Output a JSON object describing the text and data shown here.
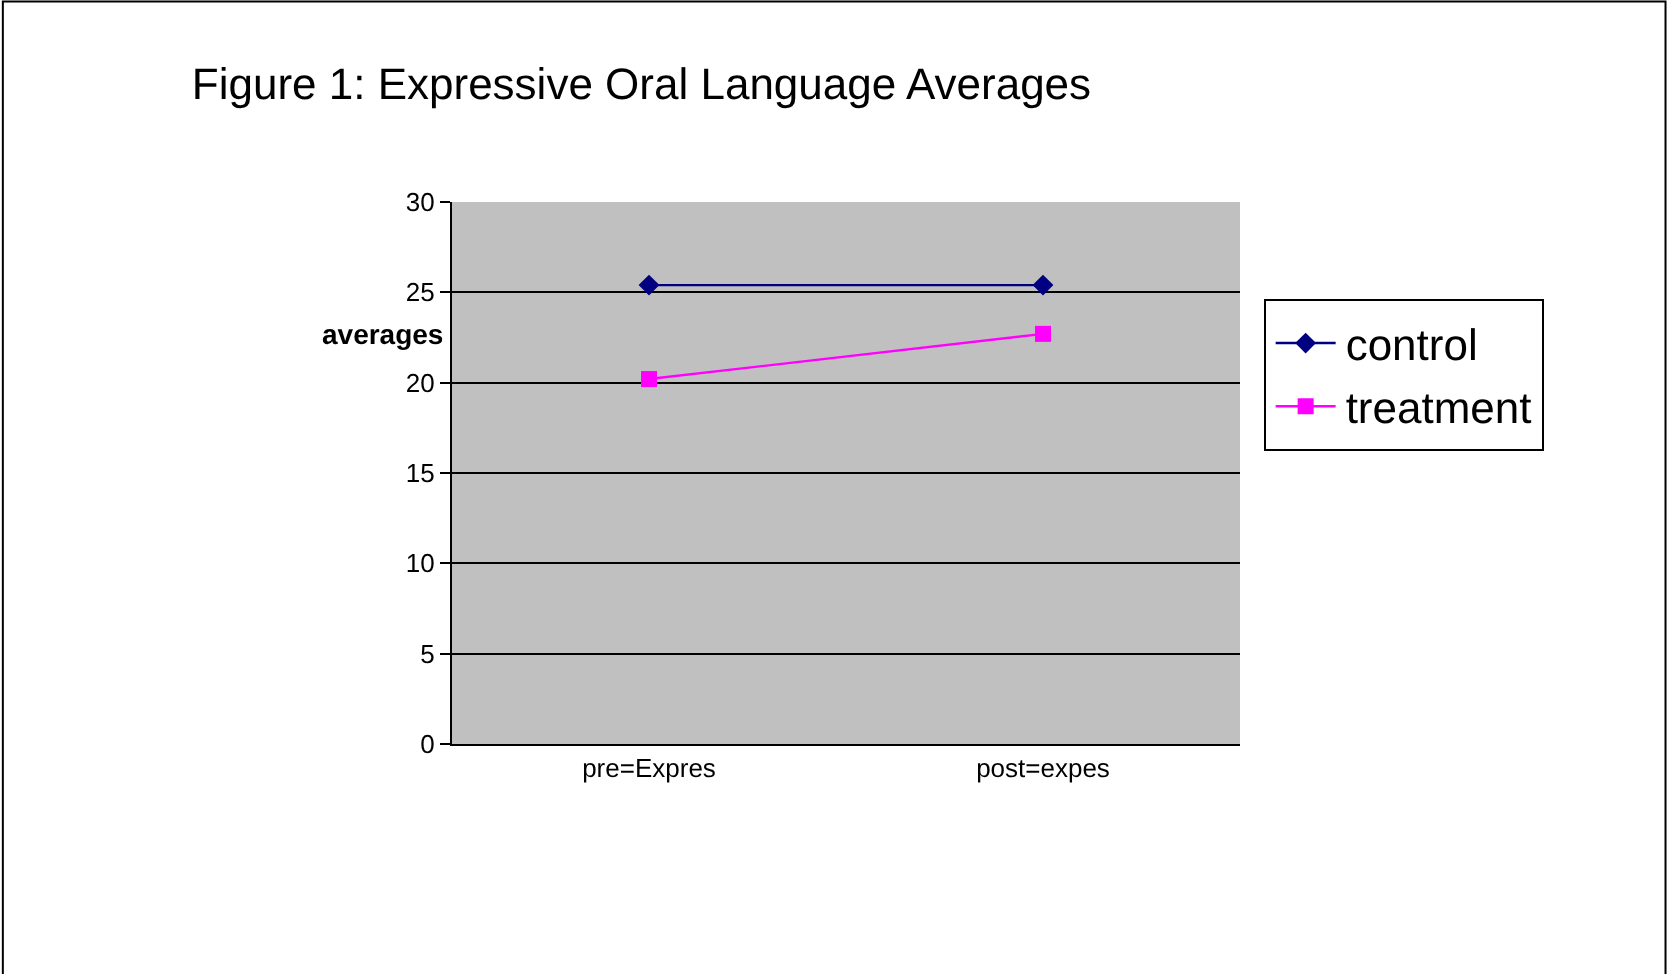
{
  "chart_data": {
    "type": "line",
    "title": "Figure 1: Expressive Oral Language Averages",
    "ylabel": "averages",
    "categories": [
      "pre=Expres",
      "post=expes"
    ],
    "series": [
      {
        "name": "control",
        "color": "#000080",
        "values": [
          25.4,
          25.4
        ],
        "marker": "diamond"
      },
      {
        "name": "treatment",
        "color": "#ff00ff",
        "values": [
          20.2,
          22.7
        ],
        "marker": "square"
      }
    ],
    "ylim": [
      0,
      30
    ],
    "yticks": [
      0,
      5,
      10,
      15,
      20,
      25,
      30
    ],
    "grid": "y",
    "legend": "right"
  }
}
